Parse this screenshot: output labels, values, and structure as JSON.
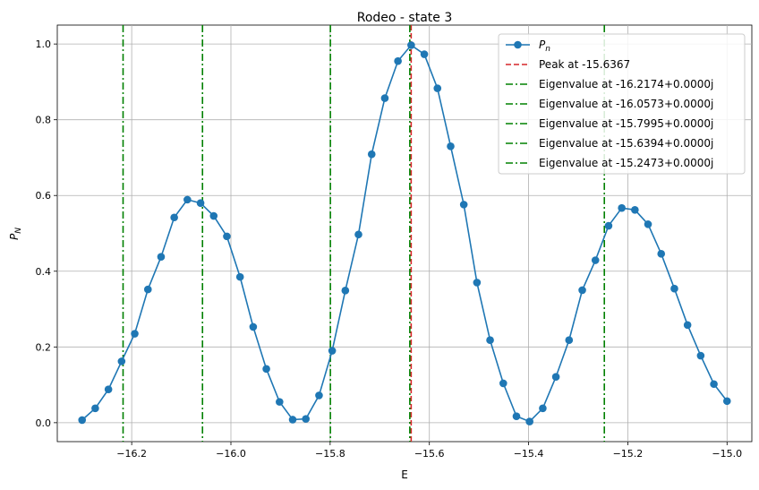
{
  "chart_data": {
    "type": "line",
    "title": "Rodeo - state 3",
    "xlabel": "E",
    "ylabel": "P_N",
    "xlim": [
      -16.35,
      -14.95
    ],
    "ylim": [
      -0.05,
      1.05
    ],
    "xticks": [
      -16.2,
      -16.0,
      -15.8,
      -15.6,
      -15.4,
      -15.2,
      -15.0
    ],
    "xtick_labels": [
      "−16.2",
      "−16.0",
      "−15.8",
      "−15.6",
      "−15.4",
      "−15.2",
      "−15.0"
    ],
    "yticks": [
      0.0,
      0.2,
      0.4,
      0.6,
      0.8,
      1.0
    ],
    "ytick_labels": [
      "0.0",
      "0.2",
      "0.4",
      "0.6",
      "0.8",
      "1.0"
    ],
    "grid": true,
    "legend_position": "top-right",
    "series": [
      {
        "name": "P_n",
        "color": "#1f77b4",
        "marker": "circle",
        "x": [
          -16.3,
          -16.2735,
          -16.2469,
          -16.2204,
          -16.1939,
          -16.1673,
          -16.1408,
          -16.1143,
          -16.0878,
          -16.0612,
          -16.0347,
          -16.0082,
          -15.9816,
          -15.9551,
          -15.9286,
          -15.902,
          -15.8755,
          -15.849,
          -15.8224,
          -15.7959,
          -15.7694,
          -15.7429,
          -15.7163,
          -15.6898,
          -15.6633,
          -15.6367,
          -15.6102,
          -15.5837,
          -15.5571,
          -15.5306,
          -15.5041,
          -15.4776,
          -15.451,
          -15.4245,
          -15.398,
          -15.3714,
          -15.3449,
          -15.3184,
          -15.2918,
          -15.2653,
          -15.2388,
          -15.2122,
          -15.1857,
          -15.1592,
          -15.1327,
          -15.1061,
          -15.0796,
          -15.0531,
          -15.0265,
          -15.0
        ],
        "y": [
          0.007,
          0.038,
          0.088,
          0.162,
          0.235,
          0.352,
          0.438,
          0.542,
          0.589,
          0.58,
          0.546,
          0.492,
          0.385,
          0.253,
          0.142,
          0.055,
          0.008,
          0.01,
          0.072,
          0.19,
          0.349,
          0.497,
          0.709,
          0.857,
          0.955,
          0.997,
          0.973,
          0.883,
          0.73,
          0.576,
          0.37,
          0.218,
          0.104,
          0.017,
          0.003,
          0.038,
          0.121,
          0.218,
          0.35,
          0.429,
          0.52,
          0.567,
          0.562,
          0.524,
          0.446,
          0.354,
          0.258,
          0.177,
          0.102,
          0.057
        ]
      }
    ],
    "vlines": [
      {
        "x": -15.6367,
        "color": "#d62728",
        "style": "dashed",
        "label": "Peak at -15.6367"
      },
      {
        "x": -16.2174,
        "color": "#008000",
        "style": "dashdot",
        "label": "Eigenvalue at -16.2174+0.0000j"
      },
      {
        "x": -16.0573,
        "color": "#008000",
        "style": "dashdot",
        "label": "Eigenvalue at -16.0573+0.0000j"
      },
      {
        "x": -15.7995,
        "color": "#008000",
        "style": "dashdot",
        "label": "Eigenvalue at -15.7995+0.0000j"
      },
      {
        "x": -15.6394,
        "color": "#008000",
        "style": "dashdot",
        "label": "Eigenvalue at -15.6394+0.0000j"
      },
      {
        "x": -15.2473,
        "color": "#008000",
        "style": "dashdot",
        "label": "Eigenvalue at -15.2473+0.0000j"
      }
    ]
  }
}
